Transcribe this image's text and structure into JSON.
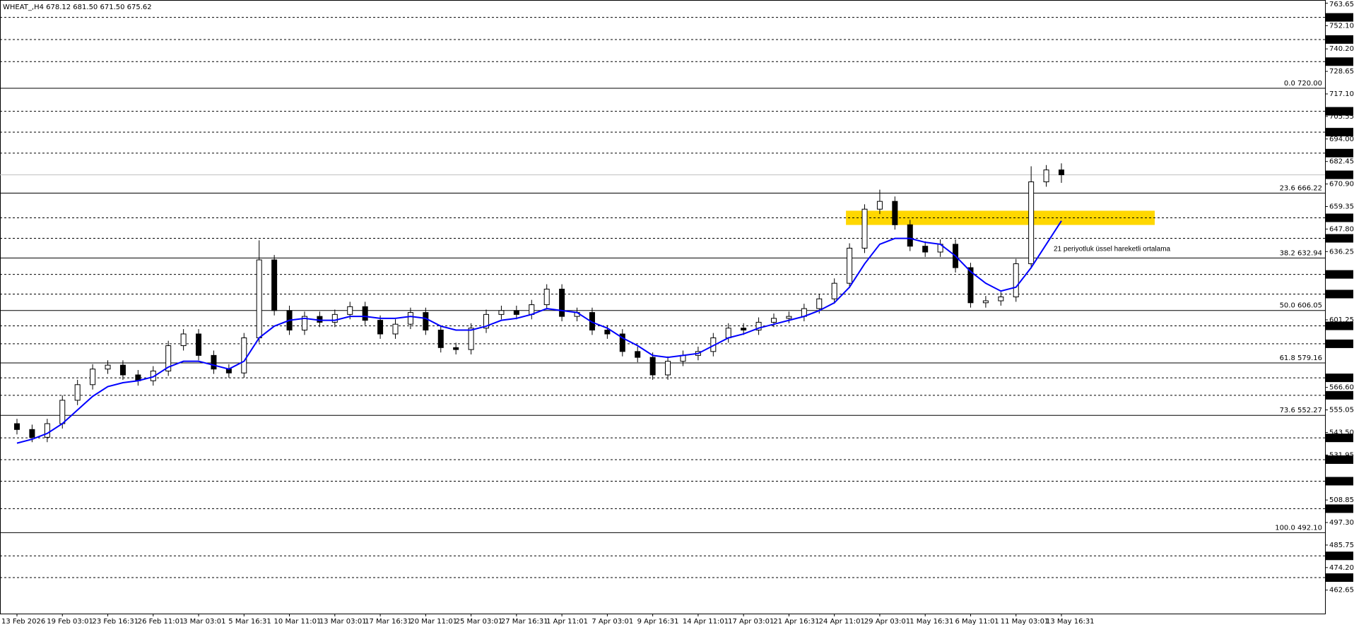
{
  "chart_data": {
    "type": "candlestick",
    "header": "WHEAT_,H4  678.12 681.50 671.50 675.62",
    "annotation": "21 periyotluk üssel hareketli ortalama",
    "categories": [
      "13 Feb 2026",
      null,
      null,
      "19 Feb 03:01",
      null,
      null,
      "23 Feb 16:31",
      null,
      null,
      "26 Feb 11:01",
      null,
      null,
      "3 Mar 03:01",
      null,
      null,
      "5 Mar 16:31",
      null,
      null,
      "10 Mar 11:01",
      null,
      null,
      "13 Mar 03:01",
      null,
      null,
      "17 Mar 16:31",
      null,
      null,
      "20 Mar 11:01",
      null,
      null,
      "25 Mar 03:01",
      null,
      null,
      "27 Mar 16:31",
      null,
      null,
      "1 Apr 11:01",
      null,
      null,
      "7 Apr 03:01",
      null,
      null,
      "9 Apr 16:31",
      null,
      null,
      "14 Apr 11:01",
      null,
      null,
      "17 Apr 03:01",
      null,
      null,
      "21 Apr 16:31",
      null,
      null,
      "24 Apr 11:01",
      null,
      null,
      "29 Apr 03:01",
      null,
      null,
      "1 May 16:31",
      null,
      null,
      "6 May 11:01",
      null,
      null,
      "11 May 03:01",
      null,
      null,
      "13 May 16:31"
    ],
    "open": [
      548,
      545,
      541,
      548,
      560,
      568,
      576,
      578,
      573,
      570,
      575,
      588,
      594,
      583,
      576,
      574,
      592,
      632,
      606,
      596,
      603,
      600,
      604,
      608,
      601,
      594,
      599,
      605,
      596,
      587,
      586,
      597,
      604,
      606,
      604,
      609,
      617,
      603,
      605,
      596,
      594,
      585,
      582,
      573,
      580,
      583,
      585,
      592,
      597,
      596,
      600,
      602,
      603,
      607,
      612,
      620,
      638,
      658,
      662,
      650,
      639,
      636,
      640,
      628,
      610,
      611,
      613,
      630,
      672,
      678.12
    ],
    "high": [
      550.5,
      547.5,
      550.5,
      562.5,
      570.5,
      578.5,
      580.5,
      580.5,
      575.5,
      577.5,
      590.5,
      596.5,
      596.5,
      585.5,
      578.5,
      594.5,
      642,
      634.5,
      608.5,
      605.5,
      605.5,
      606.5,
      610.5,
      610.5,
      603.5,
      601.5,
      607.5,
      607.5,
      598.5,
      589.5,
      599.5,
      606.5,
      608.5,
      608.5,
      611.5,
      619.5,
      619.5,
      607.5,
      607.5,
      598.5,
      596.5,
      587.5,
      584.5,
      582.5,
      585.5,
      587.5,
      594.5,
      599.5,
      599.5,
      602.5,
      604.5,
      605.5,
      609.5,
      614.5,
      622.5,
      640.5,
      660.5,
      668,
      664.5,
      652.5,
      641.5,
      642.5,
      642.5,
      630.5,
      613.5,
      615.5,
      632.5,
      680,
      680.62,
      681.5
    ],
    "low": [
      542.5,
      538.5,
      538.5,
      545.5,
      557.5,
      565.5,
      573.5,
      570.5,
      567.5,
      567.5,
      572.5,
      585.5,
      580.5,
      573.5,
      571.5,
      571.5,
      589.5,
      603.5,
      593.5,
      593.5,
      597.5,
      597.5,
      601.5,
      598.5,
      591.5,
      591.5,
      596.5,
      593.5,
      584.5,
      583.5,
      583.5,
      594.5,
      601.5,
      601.5,
      601.5,
      606.5,
      600.5,
      600.5,
      593.5,
      591.5,
      582.5,
      579.5,
      570.5,
      570.5,
      577.5,
      580.5,
      582.5,
      589.5,
      593.5,
      593.5,
      597.5,
      599.5,
      600.5,
      604.5,
      609.5,
      617.5,
      635.5,
      655.5,
      647.5,
      636.5,
      633.5,
      633.5,
      625.5,
      607.5,
      607.5,
      608.5,
      610.5,
      627.5,
      669.5,
      671.5
    ],
    "close": [
      545,
      541,
      548,
      560,
      568,
      576,
      578,
      573,
      570,
      575,
      588,
      594,
      583,
      576,
      574,
      592,
      632,
      606,
      596,
      603,
      600,
      604,
      608,
      601,
      594,
      599,
      605,
      596,
      587,
      586,
      597,
      604,
      606,
      604,
      609,
      617,
      603,
      605,
      596,
      594,
      585,
      582,
      573,
      580,
      583,
      585,
      592,
      597,
      596,
      600,
      602,
      603,
      607,
      612,
      620,
      638,
      658,
      662,
      650,
      639,
      636,
      640,
      628,
      610,
      611,
      613,
      630,
      672,
      678.12,
      675.62
    ],
    "ema": {
      "color": "#0000ff",
      "values": [
        538,
        540,
        543,
        548,
        555,
        562,
        567,
        569,
        570,
        572,
        577,
        580,
        580,
        578,
        576,
        580,
        592,
        598,
        601,
        602,
        601,
        601,
        603,
        603,
        602,
        602,
        603,
        602,
        598,
        596,
        596,
        598,
        601,
        602,
        604,
        607,
        606,
        605,
        600,
        597,
        592,
        588,
        583,
        582,
        583,
        584,
        588,
        592,
        594,
        597,
        599,
        601,
        603,
        606,
        610,
        618,
        630,
        640,
        643,
        643,
        641,
        640,
        634,
        626,
        620,
        616,
        618,
        628,
        640,
        652
      ]
    },
    "zone": {
      "low": 649.9,
      "high": 657.2,
      "color": "#ffd700"
    },
    "current_price": 675.62,
    "levels": [
      756.35,
      {
        "value": 745,
        "label": "745.00"
      },
      733.65,
      {
        "value": 708.2,
        "label": "708.20"
      },
      {
        "value": 697.5,
        "label": "697.50"
      },
      686.75,
      653.55,
      643.05,
      624.55,
      614.45,
      598.15,
      588.95,
      {
        "value": 571.5,
        "label": "571.50"
      },
      562.55,
      {
        "value": 540.7,
        "label": "540.70"
      },
      529.55,
      {
        "value": 518.5,
        "label": "518.50"
      },
      {
        "value": 504.4,
        "label": "504.40"
      },
      {
        "value": 480.2,
        "label": "480.20"
      },
      469.05
    ],
    "fib_levels": [
      {
        "value": 720,
        "label": "0.0 720.00"
      },
      {
        "value": 666.22,
        "label": "23.6 666.22"
      },
      {
        "value": 632.94,
        "label": "38.2 632.94"
      },
      {
        "value": 606.05,
        "label": "50.0 606.05"
      },
      {
        "value": 579.16,
        "label": "61.8 579.16"
      },
      {
        "value": 552.27,
        "label": "73.6 552.27"
      },
      {
        "value": 492.1,
        "label": "100.0 492.10"
      }
    ],
    "ylim": [
      450.6,
      764.9
    ],
    "yticks": [
      763.65,
      {
        "value": 752.1,
        "label": "752.10"
      },
      {
        "value": 740.2,
        "label": "740.20"
      },
      728.65,
      {
        "value": 717.1,
        "label": "717.10"
      },
      705.55,
      {
        "value": 694,
        "label": "694.00"
      },
      682.45,
      {
        "value": 670.9,
        "label": "670.90"
      },
      659.35,
      {
        "value": 647.8,
        "label": "647.80"
      },
      636.25,
      601.25,
      {
        "value": 566.6,
        "label": "566.60"
      },
      555.05,
      {
        "value": 543.5,
        "label": "543.50"
      },
      531.95,
      508.85,
      {
        "value": 497.3,
        "label": "497.30"
      },
      485.75,
      {
        "value": 474.2,
        "label": "474.20"
      },
      462.65
    ]
  }
}
